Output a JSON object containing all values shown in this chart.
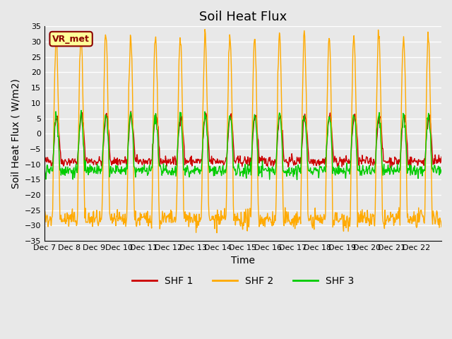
{
  "title": "Soil Heat Flux",
  "ylabel": "Soil Heat Flux ( W/m2)",
  "xlabel": "Time",
  "ylim": [
    -35,
    35
  ],
  "yticks": [
    -35,
    -30,
    -25,
    -20,
    -15,
    -10,
    -5,
    0,
    5,
    10,
    15,
    20,
    25,
    30,
    35
  ],
  "xtick_labels": [
    "Dec 7",
    "Dec 8",
    "Dec 9",
    "Dec 10",
    "Dec 11",
    "Dec 12",
    "Dec 13",
    "Dec 14",
    "Dec 15",
    "Dec 16",
    "Dec 17",
    "Dec 18",
    "Dec 19",
    "Dec 20",
    "Dec 21",
    "Dec 22"
  ],
  "line_colors": [
    "#cc0000",
    "#ffaa00",
    "#00cc00"
  ],
  "line_labels": [
    "SHF 1",
    "SHF 2",
    "SHF 3"
  ],
  "annotation_text": "VR_met",
  "background_color": "#e8e8e8",
  "plot_bg_color": "#e8e8e8",
  "grid_color": "#ffffff",
  "title_fontsize": 13,
  "axis_fontsize": 10,
  "tick_fontsize": 8,
  "legend_fontsize": 10
}
